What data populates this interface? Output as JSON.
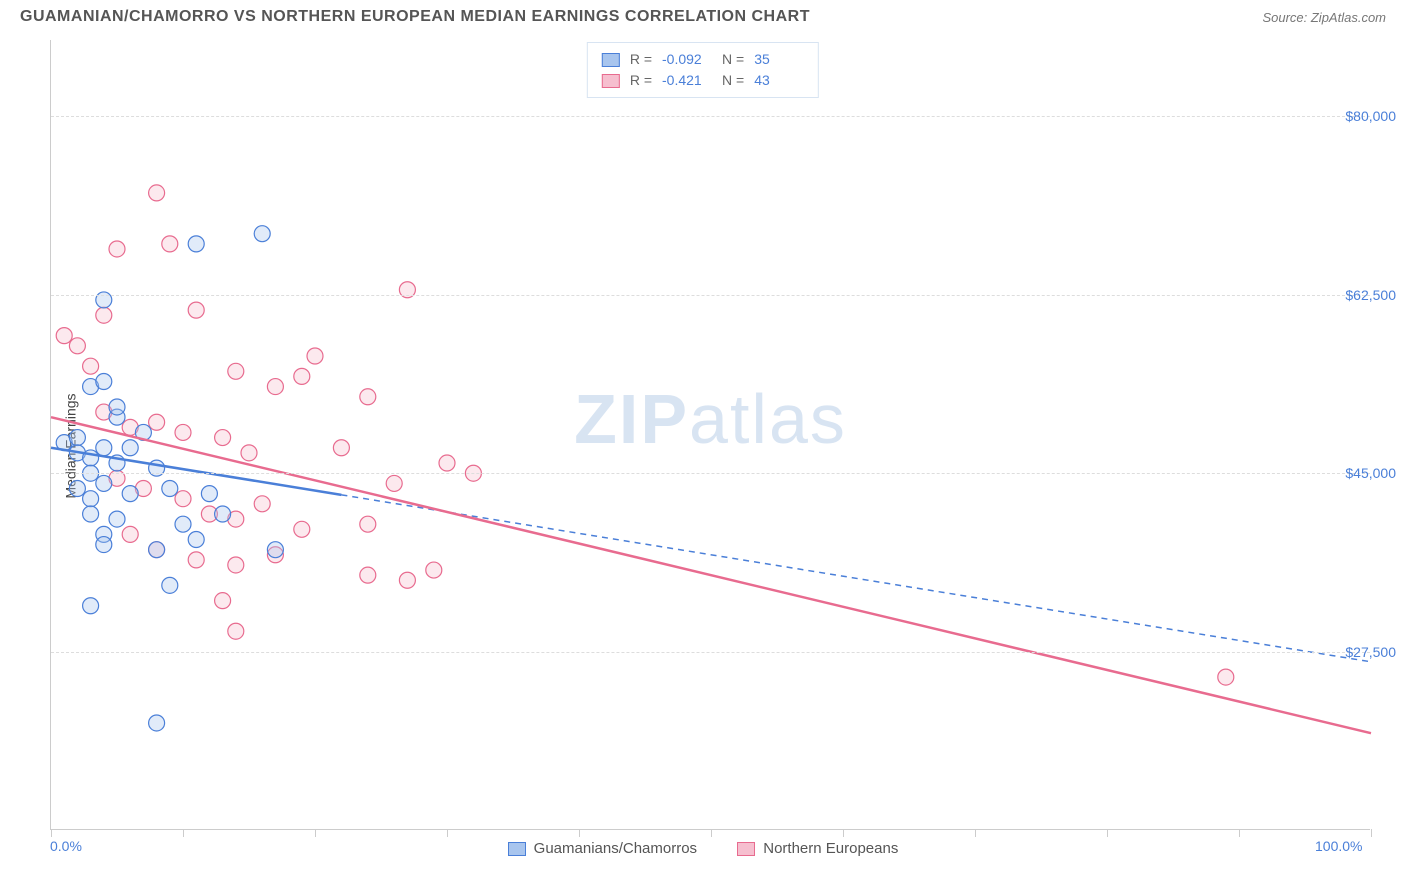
{
  "title": "GUAMANIAN/CHAMORRO VS NORTHERN EUROPEAN MEDIAN EARNINGS CORRELATION CHART",
  "source": "Source: ZipAtlas.com",
  "ylabel": "Median Earnings",
  "watermark_zip": "ZIP",
  "watermark_atlas": "atlas",
  "chart": {
    "type": "scatter-regression",
    "xlim": [
      0,
      100
    ],
    "ylim": [
      10000,
      87500
    ],
    "x_ticks_percent": [
      0,
      10,
      20,
      30,
      40,
      50,
      60,
      70,
      80,
      90,
      100
    ],
    "x_tick_labels_shown": {
      "0": "0.0%",
      "100": "100.0%"
    },
    "y_gridlines": [
      27500,
      45000,
      62500,
      80000
    ],
    "y_tick_labels": {
      "27500": "$27,500",
      "45000": "$45,000",
      "62500": "$62,500",
      "80000": "$80,000"
    },
    "background_color": "#ffffff",
    "grid_color": "#dddddd",
    "axis_color": "#cccccc",
    "tick_label_color": "#4a7fd8",
    "marker_radius": 8,
    "marker_stroke_width": 1.2,
    "marker_fill_opacity": 0.35,
    "series": [
      {
        "name": "Guamanians/Chamorros",
        "color_stroke": "#4a7fd8",
        "color_fill": "#a8c5ee",
        "R": "-0.092",
        "N": "35",
        "regression": {
          "x1": 0,
          "y1": 47500,
          "x2": 100,
          "y2": 26500,
          "solid_until_x": 22
        },
        "points": [
          [
            4,
            62000
          ],
          [
            11,
            67500
          ],
          [
            16,
            68500
          ],
          [
            3,
            53500
          ],
          [
            4,
            54000
          ],
          [
            1,
            48000
          ],
          [
            2,
            48500
          ],
          [
            2,
            47000
          ],
          [
            3,
            46500
          ],
          [
            4,
            47500
          ],
          [
            5,
            50500
          ],
          [
            5,
            46000
          ],
          [
            6,
            47500
          ],
          [
            3,
            45000
          ],
          [
            4,
            44000
          ],
          [
            2,
            43500
          ],
          [
            3,
            42500
          ],
          [
            6,
            43000
          ],
          [
            8,
            45500
          ],
          [
            9,
            43500
          ],
          [
            3,
            41000
          ],
          [
            5,
            40500
          ],
          [
            4,
            39000
          ],
          [
            8,
            37500
          ],
          [
            11,
            38500
          ],
          [
            13,
            41000
          ],
          [
            12,
            43000
          ],
          [
            10,
            40000
          ],
          [
            4,
            38000
          ],
          [
            17,
            37500
          ],
          [
            9,
            34000
          ],
          [
            3,
            32000
          ],
          [
            8,
            20500
          ],
          [
            5,
            51500
          ],
          [
            7,
            49000
          ]
        ]
      },
      {
        "name": "Northern Europeans",
        "color_stroke": "#e86b8f",
        "color_fill": "#f6bfcf",
        "R": "-0.421",
        "N": "43",
        "regression": {
          "x1": 0,
          "y1": 50500,
          "x2": 100,
          "y2": 19500,
          "solid_until_x": 100
        },
        "points": [
          [
            8,
            72500
          ],
          [
            5,
            67000
          ],
          [
            9,
            67500
          ],
          [
            1,
            58500
          ],
          [
            2,
            57500
          ],
          [
            4,
            60500
          ],
          [
            11,
            61000
          ],
          [
            27,
            63000
          ],
          [
            14,
            55000
          ],
          [
            17,
            53500
          ],
          [
            19,
            54500
          ],
          [
            20,
            56500
          ],
          [
            24,
            52500
          ],
          [
            4,
            51000
          ],
          [
            6,
            49500
          ],
          [
            8,
            50000
          ],
          [
            10,
            49000
          ],
          [
            13,
            48500
          ],
          [
            15,
            47000
          ],
          [
            22,
            47500
          ],
          [
            30,
            46000
          ],
          [
            5,
            44500
          ],
          [
            7,
            43500
          ],
          [
            10,
            42500
          ],
          [
            12,
            41000
          ],
          [
            14,
            40500
          ],
          [
            16,
            42000
          ],
          [
            19,
            39500
          ],
          [
            6,
            39000
          ],
          [
            8,
            37500
          ],
          [
            11,
            36500
          ],
          [
            14,
            36000
          ],
          [
            17,
            37000
          ],
          [
            24,
            35000
          ],
          [
            27,
            34500
          ],
          [
            29,
            35500
          ],
          [
            14,
            29500
          ],
          [
            24,
            40000
          ],
          [
            26,
            44000
          ],
          [
            13,
            32500
          ],
          [
            32,
            45000
          ],
          [
            89,
            25000
          ],
          [
            3,
            55500
          ]
        ]
      }
    ]
  },
  "legend": {
    "series1_label": "Guamanians/Chamorros",
    "series2_label": "Northern Europeans"
  }
}
